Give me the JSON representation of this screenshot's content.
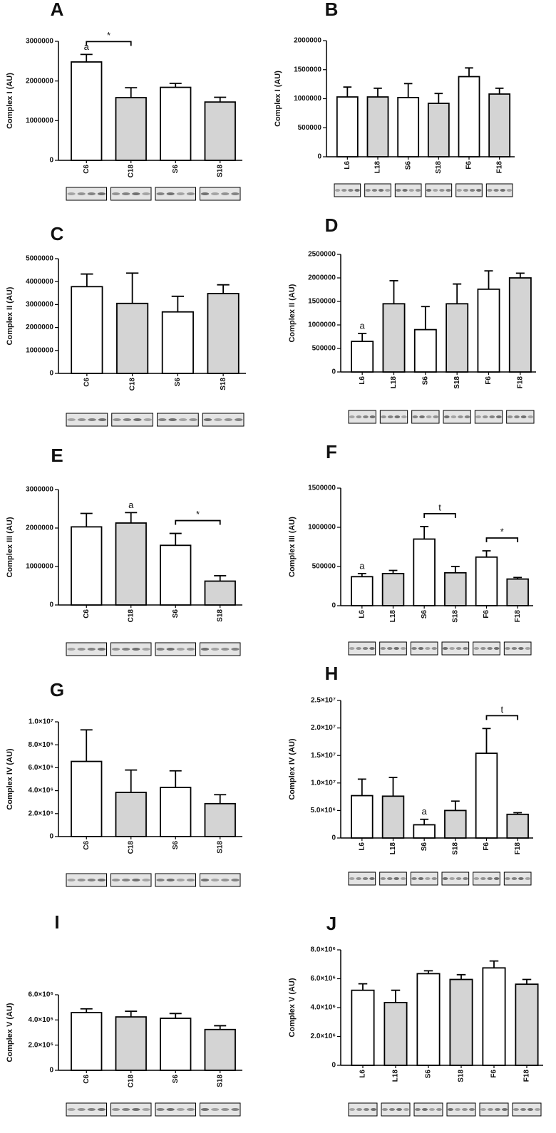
{
  "chart_data": [
    {
      "panel": "A",
      "type": "bar",
      "ylabel": "Complex I (AU)",
      "categories": [
        "C6",
        "C18",
        "S6",
        "S18"
      ],
      "values": [
        2480000,
        1580000,
        1840000,
        1470000
      ],
      "errors": [
        190000,
        250000,
        100000,
        120000
      ],
      "colors": [
        "#ffffff",
        "#d4d4d4",
        "#ffffff",
        "#d4d4d4"
      ],
      "ylim": [
        0,
        3000000
      ],
      "yticks": [
        0,
        1000000,
        2000000,
        3000000
      ],
      "markers": [
        "a",
        null,
        null,
        null
      ],
      "brackets": [
        {
          "label": "*",
          "from": "C6",
          "to": "C18"
        }
      ]
    },
    {
      "panel": "B",
      "type": "bar",
      "ylabel": "Complex I (AU)",
      "categories": [
        "L6",
        "L18",
        "S6",
        "S18",
        "F6",
        "F18"
      ],
      "values": [
        1030000,
        1030000,
        1020000,
        920000,
        1380000,
        1080000
      ],
      "errors": [
        170000,
        150000,
        240000,
        170000,
        150000,
        100000
      ],
      "colors": [
        "#ffffff",
        "#d4d4d4",
        "#ffffff",
        "#d4d4d4",
        "#ffffff",
        "#d4d4d4"
      ],
      "ylim": [
        0,
        2000000
      ],
      "yticks": [
        0,
        500000,
        1000000,
        1500000,
        2000000
      ],
      "markers": [
        null,
        null,
        null,
        null,
        null,
        null
      ],
      "brackets": []
    },
    {
      "panel": "C",
      "type": "bar",
      "ylabel": "Complex II (AU)",
      "categories": [
        "C6",
        "C18",
        "S6",
        "S18"
      ],
      "values": [
        3780000,
        3050000,
        2680000,
        3480000
      ],
      "errors": [
        550000,
        1320000,
        680000,
        380000
      ],
      "colors": [
        "#ffffff",
        "#d4d4d4",
        "#ffffff",
        "#d4d4d4"
      ],
      "ylim": [
        0,
        5000000
      ],
      "yticks": [
        0,
        1000000,
        2000000,
        3000000,
        4000000,
        5000000
      ],
      "markers": [
        null,
        null,
        null,
        null
      ],
      "brackets": []
    },
    {
      "panel": "D",
      "type": "bar",
      "ylabel": "Complex II (AU)",
      "categories": [
        "L6",
        "L18",
        "S6",
        "S18",
        "F6",
        "F18"
      ],
      "values": [
        650000,
        1450000,
        900000,
        1450000,
        1760000,
        2000000
      ],
      "errors": [
        170000,
        490000,
        490000,
        420000,
        390000,
        100000
      ],
      "colors": [
        "#ffffff",
        "#d4d4d4",
        "#ffffff",
        "#d4d4d4",
        "#ffffff",
        "#d4d4d4"
      ],
      "ylim": [
        0,
        2500000
      ],
      "yticks": [
        0,
        500000,
        1000000,
        1500000,
        2000000,
        2500000
      ],
      "markers": [
        "a",
        null,
        null,
        null,
        null,
        null
      ],
      "brackets": []
    },
    {
      "panel": "E",
      "type": "bar",
      "ylabel": "Complex III (AU)",
      "categories": [
        "C6",
        "C18",
        "S6",
        "S18"
      ],
      "values": [
        2030000,
        2130000,
        1550000,
        620000
      ],
      "errors": [
        350000,
        270000,
        310000,
        140000
      ],
      "colors": [
        "#ffffff",
        "#d4d4d4",
        "#ffffff",
        "#d4d4d4"
      ],
      "ylim": [
        0,
        3000000
      ],
      "yticks": [
        0,
        1000000,
        2000000,
        3000000
      ],
      "markers": [
        null,
        "a",
        null,
        null
      ],
      "brackets": [
        {
          "label": "*",
          "from": "S6",
          "to": "S18"
        }
      ]
    },
    {
      "panel": "F",
      "type": "bar",
      "ylabel": "Complex III (AU)",
      "categories": [
        "L6",
        "L18",
        "S6",
        "S18",
        "F6",
        "F18"
      ],
      "values": [
        370000,
        410000,
        850000,
        420000,
        620000,
        340000
      ],
      "errors": [
        40000,
        40000,
        160000,
        80000,
        80000,
        20000
      ],
      "colors": [
        "#ffffff",
        "#d4d4d4",
        "#ffffff",
        "#d4d4d4",
        "#ffffff",
        "#d4d4d4"
      ],
      "ylim": [
        0,
        1500000
      ],
      "yticks": [
        0,
        500000,
        1000000,
        1500000
      ],
      "markers": [
        "a",
        null,
        null,
        null,
        null,
        null
      ],
      "brackets": [
        {
          "label": "t",
          "from": "S6",
          "to": "S18"
        },
        {
          "label": "*",
          "from": "F6",
          "to": "F18"
        }
      ]
    },
    {
      "panel": "G",
      "type": "bar",
      "ylabel": "Complex IV (AU)",
      "categories": [
        "C6",
        "C18",
        "S6",
        "S18"
      ],
      "values": [
        6550000,
        3850000,
        4280000,
        2870000
      ],
      "errors": [
        2750000,
        1950000,
        1450000,
        780000
      ],
      "colors": [
        "#ffffff",
        "#d4d4d4",
        "#ffffff",
        "#d4d4d4"
      ],
      "ylim": [
        0,
        10000000
      ],
      "yticks": [
        0,
        {
          "value": 2000000,
          "label": "2.0×10⁶"
        },
        {
          "value": 4000000,
          "label": "4.0×10⁶"
        },
        {
          "value": 6000000,
          "label": "6.0×10⁶"
        },
        {
          "value": 8000000,
          "label": "8.0×10⁶"
        },
        {
          "value": 10000000,
          "label": "1.0×10⁷"
        }
      ],
      "markers": [
        null,
        null,
        null,
        null
      ],
      "brackets": []
    },
    {
      "panel": "H",
      "type": "bar",
      "ylabel": "Complex IV (AU)",
      "categories": [
        "L6",
        "L18",
        "S6",
        "S18",
        "F6",
        "F18"
      ],
      "values": [
        7700000,
        7600000,
        2400000,
        5000000,
        15400000,
        4300000
      ],
      "errors": [
        3000000,
        3400000,
        1000000,
        1700000,
        4500000,
        300000
      ],
      "colors": [
        "#ffffff",
        "#d4d4d4",
        "#ffffff",
        "#d4d4d4",
        "#ffffff",
        "#d4d4d4"
      ],
      "ylim": [
        0,
        25000000
      ],
      "yticks": [
        0,
        {
          "value": 5000000,
          "label": "5.0×10⁶"
        },
        {
          "value": 10000000,
          "label": "1.0×10⁷"
        },
        {
          "value": 15000000,
          "label": "1.5×10⁷"
        },
        {
          "value": 20000000,
          "label": "2.0×10⁷"
        },
        {
          "value": 25000000,
          "label": "2.5×10⁷"
        }
      ],
      "markers": [
        null,
        null,
        "a",
        null,
        null,
        null
      ],
      "brackets": [
        {
          "label": "t",
          "from": "F6",
          "to": "F18"
        }
      ]
    },
    {
      "panel": "I",
      "type": "bar",
      "ylabel": "Complex V (AU)",
      "categories": [
        "C6",
        "C18",
        "S6",
        "S18"
      ],
      "values": [
        4580000,
        4240000,
        4130000,
        3240000
      ],
      "errors": [
        300000,
        450000,
        380000,
        300000
      ],
      "colors": [
        "#ffffff",
        "#d4d4d4",
        "#ffffff",
        "#d4d4d4"
      ],
      "ylim": [
        0,
        6000000
      ],
      "yticks": [
        0,
        {
          "value": 2000000,
          "label": "2.0×10⁶"
        },
        {
          "value": 4000000,
          "label": "4.0×10⁶"
        },
        {
          "value": 6000000,
          "label": "6.0×10⁶"
        }
      ],
      "markers": [
        null,
        null,
        null,
        null
      ],
      "brackets": []
    },
    {
      "panel": "J",
      "type": "bar",
      "ylabel": "Complex V (AU)",
      "categories": [
        "L6",
        "L18",
        "S6",
        "S18",
        "F6",
        "F18"
      ],
      "values": [
        5200000,
        4350000,
        6350000,
        5950000,
        6750000,
        5620000
      ],
      "errors": [
        450000,
        850000,
        200000,
        330000,
        480000,
        330000
      ],
      "colors": [
        "#ffffff",
        "#d4d4d4",
        "#ffffff",
        "#d4d4d4",
        "#ffffff",
        "#d4d4d4"
      ],
      "ylim": [
        0,
        8000000
      ],
      "yticks": [
        0,
        {
          "value": 2000000,
          "label": "2.0×10⁶"
        },
        {
          "value": 4000000,
          "label": "4.0×10⁶"
        },
        {
          "value": 6000000,
          "label": "6.0×10⁶"
        },
        {
          "value": 8000000,
          "label": "8.0×10⁶"
        }
      ],
      "markers": [
        null,
        null,
        null,
        null,
        null,
        null
      ],
      "brackets": []
    }
  ]
}
